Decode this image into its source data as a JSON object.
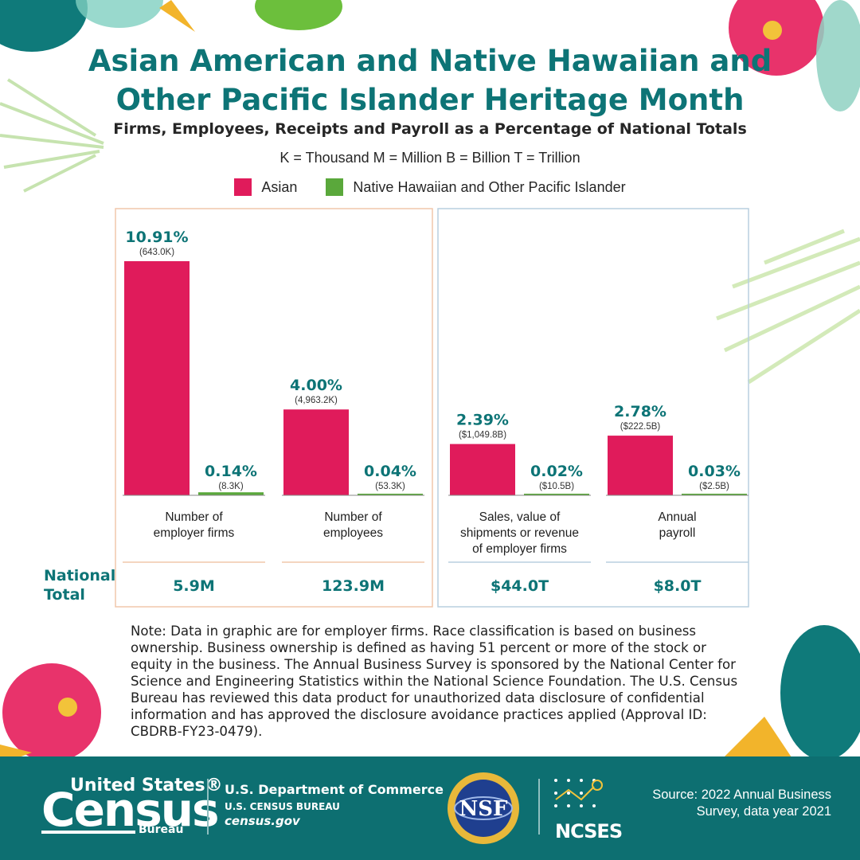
{
  "title_line1": "Asian American and Native Hawaiian and",
  "title_line2": "Other Pacific Islander Heritage Month",
  "subtitle": "Firms, Employees, Receipts and Payroll as a Percentage of National Totals",
  "units_key": "K = Thousand  M = Million  B = Billion  T = Trillion",
  "colors": {
    "asian": "#e01b5b",
    "nhopi": "#5aa83b",
    "teal": "#0d7476",
    "panel_left": "#f1c7ab",
    "panel_right": "#b8cfdf"
  },
  "chart_data": {
    "type": "bar",
    "categories": [
      "Number of employer firms",
      "Number of employees",
      "Sales, value of shipments or revenue of employer firms",
      "Annual payroll"
    ],
    "category_lines": [
      [
        "Number of",
        "employer firms"
      ],
      [
        "Number of",
        "employees"
      ],
      [
        "Sales, value of",
        "shipments or revenue",
        "of employer firms"
      ],
      [
        "Annual",
        "payroll"
      ]
    ],
    "series": [
      {
        "name": "Asian",
        "color": "#e01b5b",
        "values": [
          10.91,
          4.0,
          2.39,
          2.78
        ],
        "labels": [
          "10.91%",
          "4.00%",
          "2.39%",
          "2.78%"
        ],
        "sublabels": [
          "(643.0K)",
          "(4,963.2K)",
          "($1,049.8B)",
          "($222.5B)"
        ]
      },
      {
        "name": "Native Hawaiian and Other Pacific Islander",
        "color": "#5aa83b",
        "values": [
          0.14,
          0.04,
          0.02,
          0.03
        ],
        "labels": [
          "0.14%",
          "0.04%",
          "0.02%",
          "0.03%"
        ],
        "sublabels": [
          "(8.3K)",
          "(53.3K)",
          "($10.5B)",
          "($2.5B)"
        ]
      }
    ],
    "national_total_label": "National Total",
    "national_totals": [
      "5.9M",
      "123.9M",
      "$44.0T",
      "$8.0T"
    ],
    "ylim": [
      0,
      11.5
    ]
  },
  "note": "Note: Data in graphic are for employer firms. Race classification is based on business ownership. Business ownership is defined as having 51 percent or more of the stock or equity in the business. The Annual Business Survey is sponsored by the National Center for Science and Engineering Statistics within the National Science Foundation. The U.S. Census Bureau has reviewed this data product for unauthorized data disclosure of confidential information and has approved the disclosure avoidance practices applied (Approval ID: CBDRB-FY23-0479).",
  "footer": {
    "logo_united_states": "United States®",
    "logo_census": "Census",
    "logo_bureau": "Bureau",
    "department": "U.S. Department of Commerce",
    "bureau": "U.S. CENSUS BUREAU",
    "website": "census.gov",
    "nsf_logo": "NSF",
    "ncses_logo": "NCSES",
    "source": "Source: 2022 Annual Business Survey, data year 2021"
  }
}
